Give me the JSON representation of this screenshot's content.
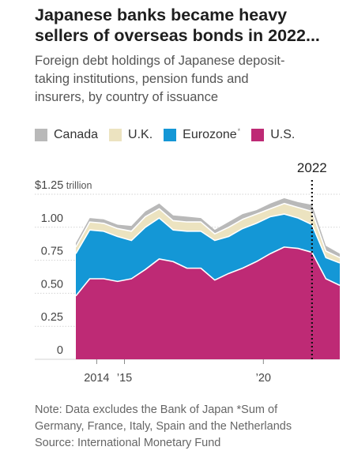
{
  "header": {
    "title_line1": "Japanese banks became heavy",
    "title_line2": "sellers of overseas bonds in 2022...",
    "subtitle_line1": "Foreign debt holdings of Japanese deposit-",
    "subtitle_line2": "taking institutions, pension funds and",
    "subtitle_line3": "insurers, by country of issuance"
  },
  "legend": [
    {
      "label": "Canada",
      "color": "#b9b9b9",
      "note": ""
    },
    {
      "label": "U.K.",
      "color": "#ece3c0",
      "note": ""
    },
    {
      "label": "Eurozone",
      "color": "#1497d6",
      "note": "*"
    },
    {
      "label": "U.S.",
      "color": "#be2a75",
      "note": ""
    }
  ],
  "footnote": {
    "line1": "Note: Data excludes the Bank of Japan *Sum of",
    "line2": "Germany, France, Italy, Spain and the Netherlands",
    "line3": "Source: International Monetary Fund"
  },
  "chart_data": {
    "type": "area",
    "stacked": true,
    "y_unit_label": "trillion",
    "ylim": [
      0,
      1.25
    ],
    "xlim": [
      2013.25,
      2022.75
    ],
    "y_ticks": [
      {
        "value": 1.25,
        "label": "$1.25"
      },
      {
        "value": 1.0,
        "label": "1.00"
      },
      {
        "value": 0.75,
        "label": "0.75"
      },
      {
        "value": 0.5,
        "label": "0.50"
      },
      {
        "value": 0.25,
        "label": "0.25"
      },
      {
        "value": 0,
        "label": "0"
      }
    ],
    "x_ticks": [
      {
        "value": 2014,
        "label": "2014"
      },
      {
        "value": 2015,
        "label": "’15"
      },
      {
        "value": 2020,
        "label": "’20"
      }
    ],
    "annotation": {
      "x": 2021.75,
      "label": "2022",
      "style": "dotted-line"
    },
    "x": [
      2013.25,
      2013.75,
      2014.25,
      2014.75,
      2015.25,
      2015.75,
      2016.25,
      2016.75,
      2017.25,
      2017.75,
      2018.25,
      2018.75,
      2019.25,
      2019.75,
      2020.25,
      2020.75,
      2021.25,
      2021.75,
      2022.25,
      2022.75
    ],
    "series": [
      {
        "name": "U.S.",
        "color": "#be2a75",
        "values": [
          0.48,
          0.61,
          0.61,
          0.59,
          0.61,
          0.68,
          0.76,
          0.74,
          0.69,
          0.69,
          0.6,
          0.65,
          0.69,
          0.74,
          0.8,
          0.85,
          0.84,
          0.81,
          0.61,
          0.56
        ]
      },
      {
        "name": "Eurozone",
        "color": "#1497d6",
        "values": [
          0.32,
          0.37,
          0.36,
          0.34,
          0.29,
          0.32,
          0.31,
          0.24,
          0.28,
          0.28,
          0.3,
          0.28,
          0.3,
          0.29,
          0.28,
          0.25,
          0.23,
          0.21,
          0.16,
          0.17
        ]
      },
      {
        "name": "U.K.",
        "color": "#ece3c0",
        "values": [
          0.05,
          0.06,
          0.06,
          0.06,
          0.07,
          0.08,
          0.07,
          0.07,
          0.07,
          0.07,
          0.05,
          0.07,
          0.07,
          0.07,
          0.06,
          0.08,
          0.08,
          0.1,
          0.05,
          0.04
        ]
      },
      {
        "name": "Canada",
        "color": "#b9b9b9",
        "values": [
          0.03,
          0.03,
          0.03,
          0.03,
          0.04,
          0.04,
          0.04,
          0.04,
          0.04,
          0.03,
          0.03,
          0.04,
          0.04,
          0.03,
          0.04,
          0.04,
          0.04,
          0.05,
          0.04,
          0.03
        ]
      }
    ],
    "grid": true
  }
}
